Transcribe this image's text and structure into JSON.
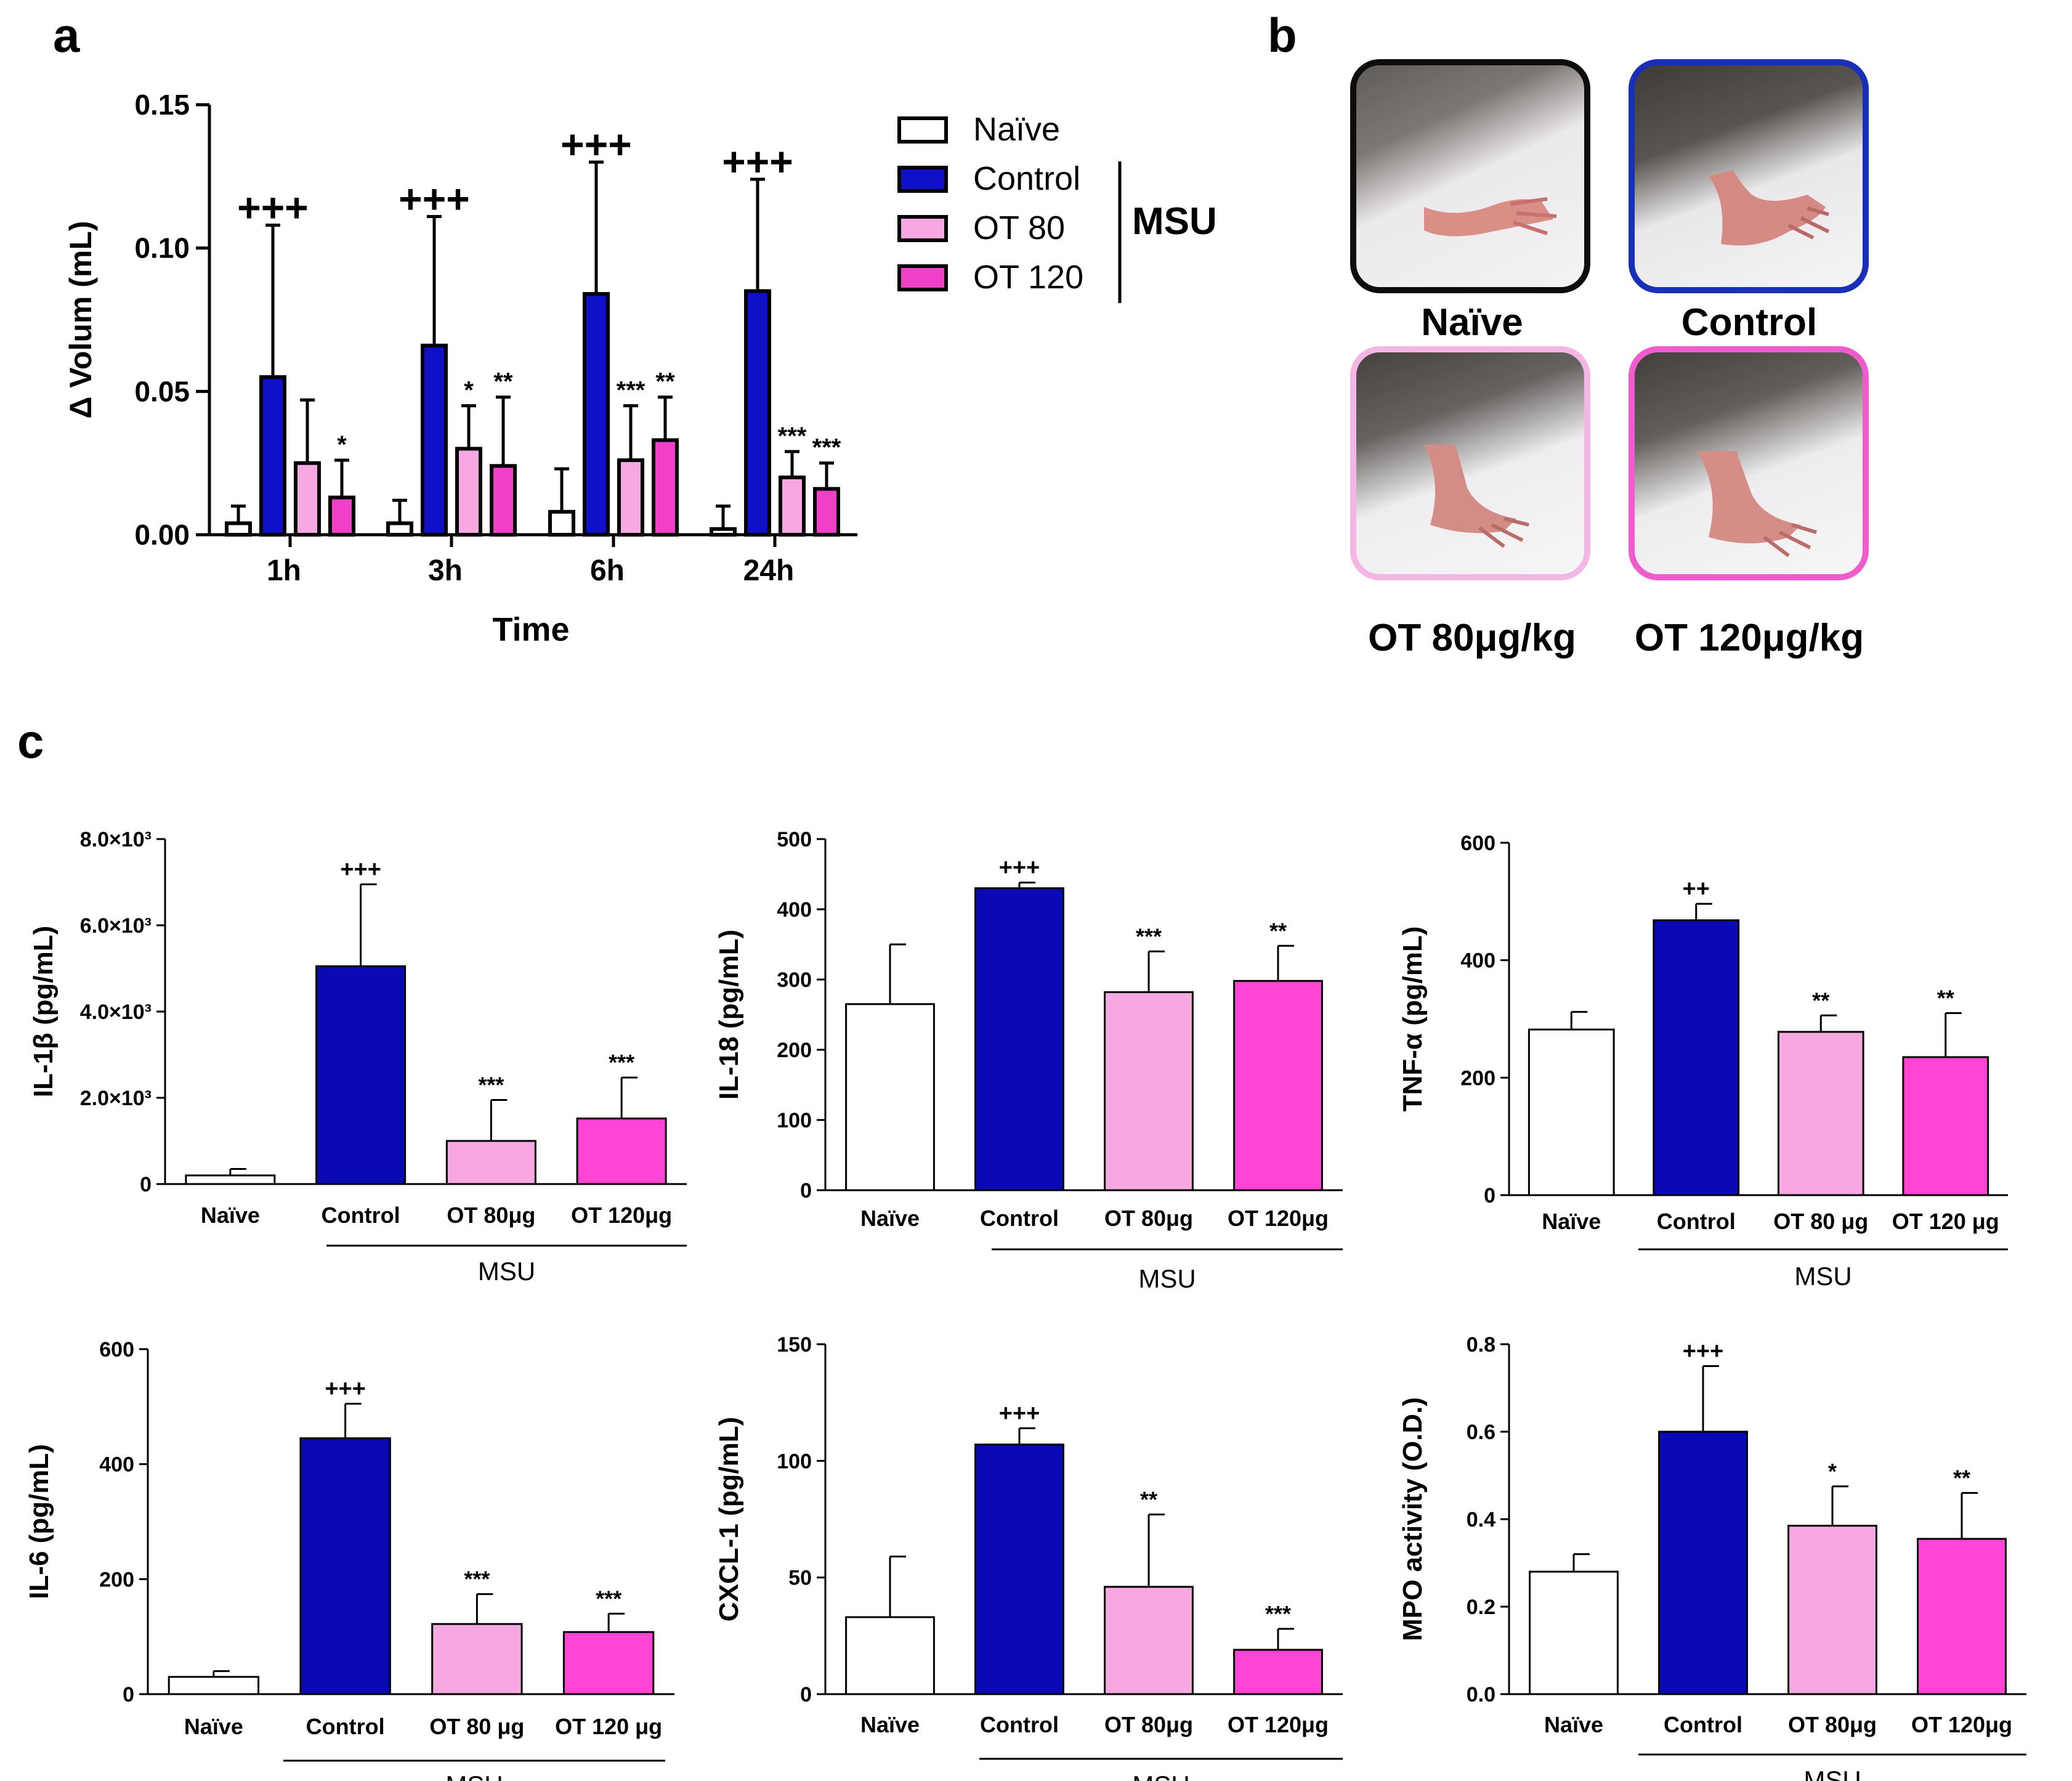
{
  "panels": {
    "a": "a",
    "b": "b",
    "c": "c"
  },
  "colors": {
    "naive": "#ffffff",
    "control": "#1010c8",
    "ot80": "#f7a8e0",
    "ot120": "#f040c8",
    "control_dark": "#0a0ab4",
    "ot120_bright": "#ff44d6"
  },
  "chart_data": [
    {
      "id": "paw-volume",
      "type": "bar",
      "title": "",
      "xlabel": "Time",
      "ylabel": "Δ Volum (mL)",
      "ylim": [
        0,
        0.15
      ],
      "yticks": [
        "0.00",
        "0.05",
        "0.10",
        "0.15"
      ],
      "categories": [
        "1h",
        "3h",
        "6h",
        "24h"
      ],
      "series": [
        {
          "name": "Naïve",
          "color": "#ffffff",
          "values": [
            0.004,
            0.004,
            0.008,
            0.002
          ],
          "errors": [
            0.006,
            0.008,
            0.015,
            0.008
          ],
          "labels": [
            "",
            "",
            "",
            ""
          ]
        },
        {
          "name": "Control",
          "color": "#1010c8",
          "values": [
            0.055,
            0.066,
            0.084,
            0.085
          ],
          "errors": [
            0.053,
            0.045,
            0.046,
            0.039
          ],
          "labels": [
            "+++",
            "+++",
            "+++",
            "+++"
          ]
        },
        {
          "name": "OT 80",
          "color": "#f7a8e0",
          "values": [
            0.025,
            0.03,
            0.026,
            0.02
          ],
          "errors": [
            0.022,
            0.015,
            0.019,
            0.009
          ],
          "labels": [
            "",
            "*",
            "***",
            "***"
          ]
        },
        {
          "name": "OT 120",
          "color": "#f040c8",
          "values": [
            0.013,
            0.024,
            0.033,
            0.016
          ],
          "errors": [
            0.013,
            0.024,
            0.015,
            0.009
          ],
          "labels": [
            "*",
            "**",
            "**",
            "***"
          ]
        }
      ],
      "legend": {
        "items": [
          "Naïve",
          "Control",
          "OT 80",
          "OT 120"
        ],
        "group_label": "MSU",
        "position": "right"
      }
    },
    {
      "id": "il1b",
      "type": "bar",
      "ylabel": "IL-1β (pg/mL)",
      "ylim": [
        0,
        8000
      ],
      "yticks": [
        "0",
        "2.0×10³",
        "4.0×10³",
        "6.0×10³",
        "8.0×10³"
      ],
      "categories": [
        "Naïve",
        "Control",
        "OT 80μg",
        "OT 120μg"
      ],
      "values": [
        200,
        5050,
        1000,
        1520
      ],
      "errors": [
        150,
        1900,
        950,
        950
      ],
      "labels": [
        "",
        "+++",
        "***",
        "***"
      ],
      "group_label": "MSU"
    },
    {
      "id": "il18",
      "type": "bar",
      "ylabel": "IL-18 (pg/mL)",
      "ylim": [
        0,
        500
      ],
      "yticks": [
        "0",
        "100",
        "200",
        "300",
        "400",
        "500"
      ],
      "categories": [
        "Naïve",
        "Control",
        "OT 80μg",
        "OT 120μg"
      ],
      "values": [
        265,
        430,
        282,
        298
      ],
      "errors": [
        85,
        8,
        58,
        50
      ],
      "labels": [
        "",
        "+++",
        "***",
        "**"
      ],
      "group_label": "MSU"
    },
    {
      "id": "tnfa",
      "type": "bar",
      "ylabel": "TNF-α (pg/mL)",
      "ylim": [
        0,
        600
      ],
      "yticks": [
        "0",
        "200",
        "400",
        "600"
      ],
      "categories": [
        "Naïve",
        "Control",
        "OT 80 μg",
        "OT 120 μg"
      ],
      "values": [
        282,
        468,
        278,
        235
      ],
      "errors": [
        30,
        28,
        28,
        75
      ],
      "labels": [
        "",
        "++",
        "**",
        "**"
      ],
      "group_label": "MSU"
    },
    {
      "id": "il6",
      "type": "bar",
      "ylabel": "IL-6 (pg/mL)",
      "ylim": [
        0,
        600
      ],
      "yticks": [
        "0",
        "200",
        "400",
        "600"
      ],
      "categories": [
        "Naïve",
        "Control",
        "OT 80 μg",
        "OT 120 μg"
      ],
      "values": [
        30,
        445,
        122,
        108
      ],
      "errors": [
        10,
        60,
        52,
        32
      ],
      "labels": [
        "",
        "+++",
        "***",
        "***"
      ],
      "group_label": "MSU"
    },
    {
      "id": "cxcl1",
      "type": "bar",
      "ylabel": "CXCL-1 (pg/mL)",
      "ylim": [
        0,
        150
      ],
      "yticks": [
        "0",
        "50",
        "100",
        "150"
      ],
      "categories": [
        "Naïve",
        "Control",
        "OT 80μg",
        "OT 120μg"
      ],
      "values": [
        33,
        107,
        46,
        19
      ],
      "errors": [
        26,
        7,
        31,
        9
      ],
      "labels": [
        "",
        "+++",
        "**",
        "***"
      ],
      "group_label": "MSU"
    },
    {
      "id": "mpo",
      "type": "bar",
      "ylabel": "MPO activity (O.D.)",
      "ylim": [
        0,
        0.8
      ],
      "yticks": [
        "0.0",
        "0.2",
        "0.4",
        "0.6",
        "0.8"
      ],
      "categories": [
        "Naïve",
        "Control",
        "OT 80μg",
        "OT 120μg"
      ],
      "values": [
        0.28,
        0.6,
        0.385,
        0.355
      ],
      "errors": [
        0.04,
        0.15,
        0.09,
        0.105
      ],
      "labels": [
        "",
        "+++",
        "*",
        "**"
      ],
      "group_label": "MSU"
    }
  ],
  "photos": [
    {
      "caption": "Naïve",
      "border": "#0d0d0d"
    },
    {
      "caption": "Control",
      "border": "#1a2fb8"
    },
    {
      "caption": "OT 80μg/kg",
      "border": "#f4b6e4"
    },
    {
      "caption": "OT 120μg/kg",
      "border": "#ee5ccd"
    }
  ]
}
